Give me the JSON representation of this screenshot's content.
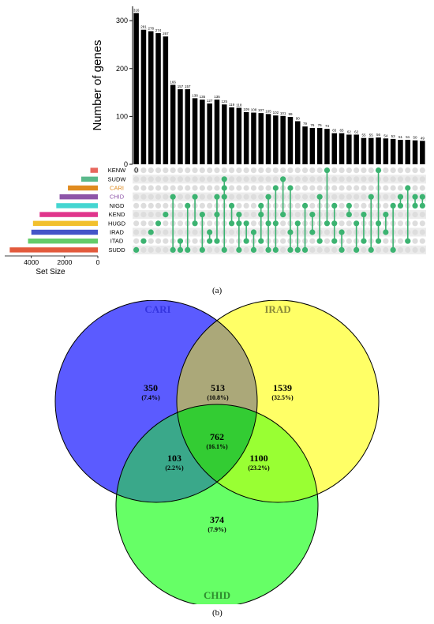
{
  "panels": {
    "a": "(a)",
    "b": "(b)"
  },
  "chart_data": [
    {
      "type": "bar",
      "ylabel": "Number of genes",
      "ylim": [
        0,
        330
      ],
      "yticks": [
        0,
        100,
        200,
        300
      ],
      "bar_color": "#000000",
      "dot_color": "#3cb371",
      "dot_inactive_color": "#dddddd",
      "values": [
        316,
        281,
        278,
        274,
        267,
        166,
        157,
        157,
        138,
        135,
        127,
        135,
        125,
        119,
        118,
        109,
        108,
        107,
        105,
        102,
        101,
        99,
        90,
        79,
        76,
        76,
        74,
        65,
        65,
        62,
        62,
        55,
        55,
        56,
        54,
        53,
        51,
        51,
        50,
        49
      ],
      "sets": [
        {
          "name": "KENW",
          "size": 450,
          "color": "#e8675e",
          "label_color": "#000000"
        },
        {
          "name": "SUDW",
          "size": 1000,
          "color": "#5ab98b",
          "label_color": "#000000"
        },
        {
          "name": "CARI",
          "size": 1800,
          "color": "#e08b1f",
          "label_color": "#e08b1f"
        },
        {
          "name": "CHID",
          "size": 2300,
          "color": "#8e55a8",
          "label_color": "#8e55a8"
        },
        {
          "name": "NIGD",
          "size": 2500,
          "color": "#44d6d1",
          "label_color": "#000000"
        },
        {
          "name": "KEND",
          "size": 3500,
          "color": "#e0358c",
          "label_color": "#000000"
        },
        {
          "name": "HUGD",
          "size": 3900,
          "color": "#f2c02e",
          "label_color": "#000000"
        },
        {
          "name": "IRAD",
          "size": 4000,
          "color": "#4355c8",
          "label_color": "#000000"
        },
        {
          "name": "ITAD",
          "size": 4200,
          "color": "#64cc6a",
          "label_color": "#000000"
        },
        {
          "name": "SUDD",
          "size": 5300,
          "color": "#e25a3c",
          "label_color": "#000000"
        }
      ],
      "set_size_label": "Set Size",
      "set_size_ticks": [
        4000,
        2000,
        0
      ],
      "set_size_max": 5600,
      "zero_label": "0",
      "intersections": [
        [
          9
        ],
        [
          8
        ],
        [
          7
        ],
        [
          6
        ],
        [
          5
        ],
        [
          3,
          9
        ],
        [
          8,
          9
        ],
        [
          4,
          9
        ],
        [
          3,
          6
        ],
        [
          5,
          9
        ],
        [
          7,
          8
        ],
        [
          3,
          5,
          8
        ],
        [
          1,
          2,
          3,
          9
        ],
        [
          4,
          6
        ],
        [
          5,
          6,
          9
        ],
        [
          6,
          8
        ],
        [
          7,
          9
        ],
        [
          4,
          5,
          8
        ],
        [
          3,
          6,
          9
        ],
        [
          2,
          6,
          9
        ],
        [
          1,
          5
        ],
        [
          2,
          7,
          9
        ],
        [
          6,
          9
        ],
        [
          4,
          9
        ],
        [
          5,
          7
        ],
        [
          3,
          8
        ],
        [
          0,
          6
        ],
        [
          4,
          6,
          8
        ],
        [
          7,
          9
        ],
        [
          4,
          5
        ],
        [
          6,
          9
        ],
        [
          5,
          8
        ],
        [
          3,
          9
        ],
        [
          0,
          6,
          8
        ],
        [
          5,
          7
        ],
        [
          4,
          9
        ],
        [
          3,
          4
        ],
        [
          2,
          8
        ],
        [
          3,
          4
        ],
        [
          3,
          4
        ]
      ]
    },
    {
      "type": "venn",
      "sets": [
        {
          "name": "CARI",
          "color": "#5b5bff",
          "label_color": "#3535e0"
        },
        {
          "name": "IRAD",
          "color": "#ffff66",
          "label_color": "#8a8a3a"
        },
        {
          "name": "CHID",
          "color": "#66ff66",
          "label_color": "#2e8b2e"
        }
      ],
      "regions": [
        {
          "id": "cari_only",
          "count": "350",
          "pct": "(7.4%)"
        },
        {
          "id": "cari_irad",
          "count": "513",
          "pct": "(10.8%)"
        },
        {
          "id": "irad_only",
          "count": "1539",
          "pct": "(32.5%)"
        },
        {
          "id": "all_three",
          "count": "762",
          "pct": "(16.1%)"
        },
        {
          "id": "cari_chid",
          "count": "103",
          "pct": "(2.2%)"
        },
        {
          "id": "irad_chid",
          "count": "1100",
          "pct": "(23.2%)"
        },
        {
          "id": "chid_only",
          "count": "374",
          "pct": "(7.9%)"
        }
      ],
      "region_colors": {
        "cari_irad": "#aba879",
        "cari_chid": "#3aa88a",
        "irad_chid": "#99ff33",
        "all_three": "#33cc33"
      }
    }
  ]
}
